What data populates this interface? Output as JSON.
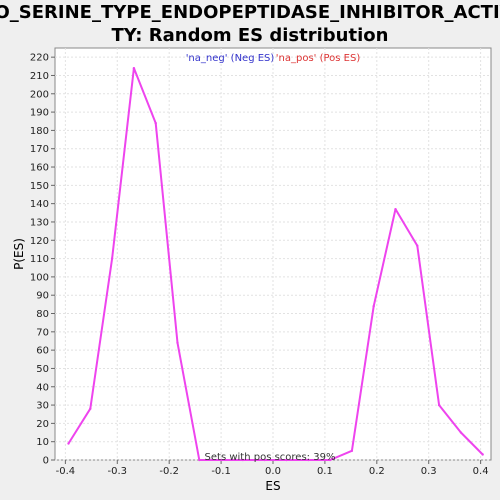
{
  "chart_data": {
    "type": "line",
    "title_lines": [
      "GO_SERINE_TYPE_ENDOPEPTIDASE_INHIBITOR_ACTIVI",
      "TY: Random ES distribution"
    ],
    "xlabel": "ES",
    "ylabel": "P(ES)",
    "xlim": [
      -0.42,
      0.42
    ],
    "ylim": [
      0,
      225
    ],
    "x_ticks": [
      "-0.4",
      "-0.3",
      "-0.2",
      "-0.1",
      "0.0",
      "0.1",
      "0.2",
      "0.3",
      "0.4"
    ],
    "y_ticks": [
      "0",
      "10",
      "20",
      "30",
      "40",
      "50",
      "60",
      "70",
      "80",
      "90",
      "100",
      "110",
      "120",
      "130",
      "140",
      "150",
      "160",
      "170",
      "180",
      "190",
      "200",
      "210",
      "220"
    ],
    "grid": true,
    "legend": {
      "placement": "top-center",
      "entries": [
        {
          "label": "'na_neg' (Neg ES)",
          "color": "#3333cc"
        },
        {
          "label": "'na_pos' (Pos ES)",
          "color": "#dd3333"
        }
      ]
    },
    "annotation": "Sets with pos scores: 39%",
    "series": [
      {
        "color": "#ee44ee",
        "x": [
          -0.394,
          -0.352,
          -0.31,
          -0.268,
          -0.226,
          -0.184,
          -0.142,
          -0.1,
          -0.058,
          -0.016,
          0.026,
          0.068,
          0.11,
          0.152,
          0.194,
          0.236,
          0.278,
          0.32,
          0.362,
          0.404
        ],
        "y": [
          9,
          28,
          110,
          214,
          184,
          64,
          0,
          0,
          0,
          0,
          0,
          0,
          0,
          5,
          84,
          137,
          117,
          30,
          15,
          3
        ]
      }
    ]
  }
}
